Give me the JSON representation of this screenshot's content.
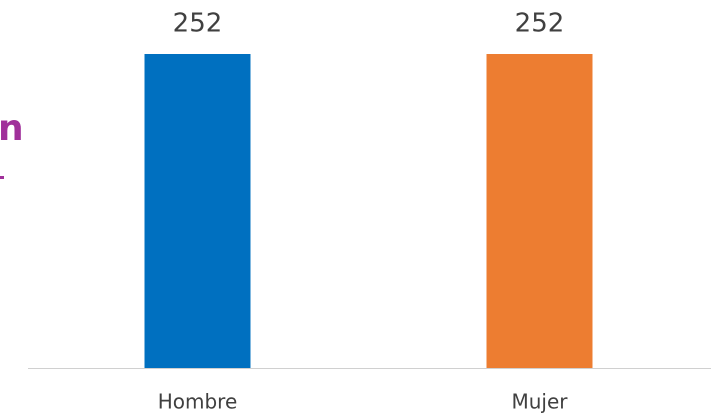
{
  "chart_data": {
    "type": "bar",
    "annotation": "n",
    "categories": [
      "Hombre",
      "Mujer"
    ],
    "values": [
      252,
      252
    ],
    "colors": [
      "#0070c0",
      "#ed7d31"
    ]
  }
}
